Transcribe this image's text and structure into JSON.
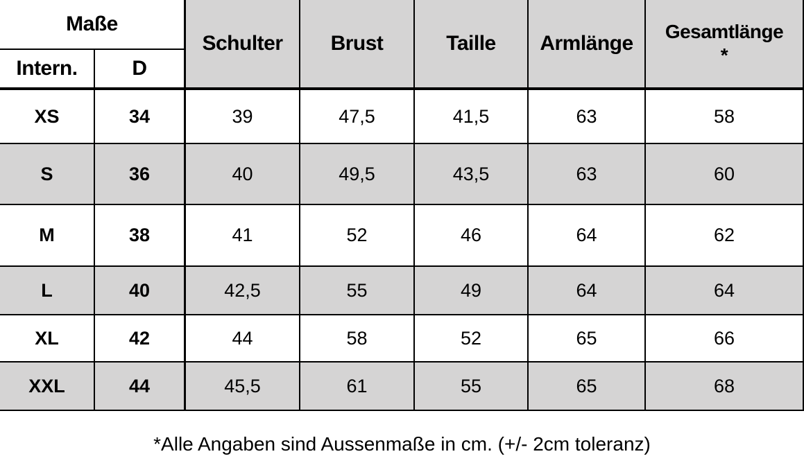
{
  "header": {
    "group": "Maße",
    "sub": [
      "Intern.",
      "D"
    ],
    "columns": [
      "Schulter",
      "Brust",
      "Taille",
      "Armlänge",
      "Gesamtlänge\n*"
    ]
  },
  "table": {
    "rows": [
      [
        "XS",
        "34",
        "39",
        "47,5",
        "41,5",
        "63",
        "58"
      ],
      [
        "S",
        "36",
        "40",
        "49,5",
        "43,5",
        "63",
        "60"
      ],
      [
        "M",
        "38",
        "41",
        "52",
        "46",
        "64",
        "62"
      ],
      [
        "L",
        "40",
        "42,5",
        "55",
        "49",
        "64",
        "64"
      ],
      [
        "XL",
        "42",
        "44",
        "58",
        "52",
        "65",
        "66"
      ],
      [
        "XXL",
        "44",
        "45,5",
        "61",
        "55",
        "65",
        "68"
      ]
    ]
  },
  "footer": {
    "note": "*Alle Angaben sind Aussenmaße in cm. (+/- 2cm toleranz)"
  }
}
